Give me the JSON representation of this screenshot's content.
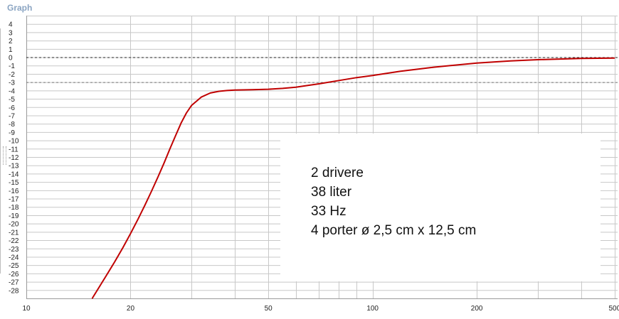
{
  "panel": {
    "title": "Graph"
  },
  "annotation": {
    "lines": [
      "2 drivere",
      "38 liter",
      "33 Hz",
      "4 porter ø 2,5 cm x 12,5 cm"
    ]
  },
  "colors": {
    "curve": "#c00000",
    "grid": "#c8c8c8",
    "axis_text": "#222222",
    "title": "#8aa4c2"
  },
  "chart_data": {
    "type": "line",
    "title": "",
    "xlabel": "",
    "ylabel": "",
    "x_scale": "log",
    "xlim": [
      10,
      510
    ],
    "ylim": [
      -29,
      5
    ],
    "x_ticks": [
      10,
      20,
      50,
      100,
      200,
      500
    ],
    "x_minor_ticks": [
      30,
      40,
      60,
      70,
      80,
      90,
      300,
      400
    ],
    "y_ticks": [
      4,
      3,
      2,
      1,
      0,
      -1,
      -2,
      -3,
      -4,
      -5,
      -6,
      -7,
      -8,
      -9,
      -10,
      -11,
      -12,
      -13,
      -14,
      -15,
      -16,
      -17,
      -18,
      -19,
      -20,
      -21,
      -22,
      -23,
      -24,
      -25,
      -26,
      -27,
      -28
    ],
    "reference_lines": [
      0,
      -3
    ],
    "grid": true,
    "series": [
      {
        "x": [
          15.5,
          17,
          18,
          19,
          20,
          21,
          22,
          23,
          24,
          25,
          26,
          27,
          28,
          29,
          30,
          32,
          34,
          36,
          38,
          40,
          45,
          50,
          55,
          60,
          65,
          70,
          80,
          90,
          100,
          120,
          150,
          200,
          250,
          300,
          400,
          500
        ],
        "values": [
          -29,
          -26.3,
          -24.6,
          -22.9,
          -21.2,
          -19.5,
          -17.8,
          -16.1,
          -14.4,
          -12.7,
          -11.0,
          -9.4,
          -7.9,
          -6.7,
          -5.8,
          -4.8,
          -4.3,
          -4.1,
          -4.0,
          -3.95,
          -3.9,
          -3.85,
          -3.75,
          -3.6,
          -3.4,
          -3.2,
          -2.8,
          -2.45,
          -2.2,
          -1.7,
          -1.2,
          -0.7,
          -0.45,
          -0.3,
          -0.15,
          -0.1
        ]
      }
    ]
  }
}
